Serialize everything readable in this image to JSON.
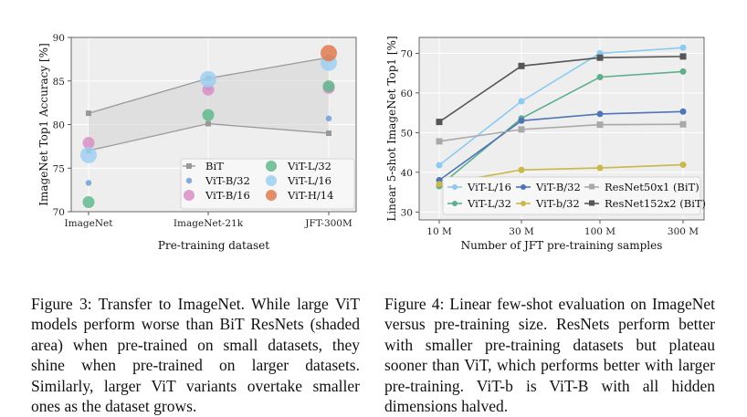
{
  "chart_data": [
    {
      "type": "scatter",
      "title": "",
      "xlabel": "Pre-training dataset",
      "ylabel": "ImageNet Top1 Accuracy [%]",
      "categories": [
        "ImageNet",
        "ImageNet-21k",
        "JFT-300M"
      ],
      "ylim": [
        70,
        90
      ],
      "yticks": [
        70,
        75,
        80,
        85,
        90
      ],
      "grid": true,
      "legend_position": "lower-right",
      "bit_band": {
        "name": "BiT",
        "upper": [
          81.3,
          85.3,
          87.7
        ],
        "lower": [
          77.0,
          80.1,
          79.0
        ],
        "color": "#999999"
      },
      "series": [
        {
          "name": "ViT-B/32",
          "values": [
            73.3,
            84.2,
            80.7
          ],
          "color": "#6f9fd8",
          "size": 1
        },
        {
          "name": "ViT-B/16",
          "values": [
            77.9,
            84.0,
            84.2
          ],
          "color": "#d98fc6",
          "size": 2
        },
        {
          "name": "ViT-L/32",
          "values": [
            71.1,
            81.1,
            84.4
          ],
          "color": "#62b88e",
          "size": 2
        },
        {
          "name": "ViT-L/16",
          "values": [
            76.5,
            85.2,
            87.1
          ],
          "color": "#9fcff2",
          "size": 3
        },
        {
          "name": "ViT-H/14",
          "values": [
            null,
            null,
            88.2
          ],
          "color": "#e07b4f",
          "size": 3
        }
      ],
      "legend": [
        "BiT",
        "ViT-B/32",
        "ViT-B/16",
        "ViT-L/32",
        "ViT-L/16",
        "ViT-H/14"
      ]
    },
    {
      "type": "line",
      "title": "",
      "xlabel": "Number of JFT pre-training samples",
      "ylabel": "Linear 5-shot ImageNet Top1 [%]",
      "x": [
        10,
        30,
        100,
        300
      ],
      "x_tick_labels": [
        "10 M",
        "30 M",
        "100 M",
        "300 M"
      ],
      "x_scale": "log",
      "ylim": [
        28,
        74
      ],
      "yticks": [
        30,
        40,
        50,
        60,
        70
      ],
      "grid": true,
      "legend_position": "lower-center",
      "series": [
        {
          "name": "ViT-L/16",
          "values": [
            41.8,
            57.9,
            70.0,
            71.4
          ],
          "color": "#8ccaf0",
          "marker": "circle"
        },
        {
          "name": "ViT-L/32",
          "values": [
            36.5,
            53.6,
            64.0,
            65.4
          ],
          "color": "#5fae8c",
          "marker": "circle"
        },
        {
          "name": "ViT-B/32",
          "values": [
            38.0,
            53.0,
            54.7,
            55.3
          ],
          "color": "#4f74b8",
          "marker": "circle"
        },
        {
          "name": "ViT-b/32",
          "values": [
            37.0,
            40.6,
            41.1,
            41.9
          ],
          "color": "#c9b84a",
          "marker": "circle"
        },
        {
          "name": "ResNet50x1 (BiT)",
          "values": [
            47.8,
            50.8,
            52.0,
            52.1
          ],
          "color": "#a9a9a9",
          "marker": "square"
        },
        {
          "name": "ResNet152x2 (BiT)",
          "values": [
            52.7,
            66.8,
            68.9,
            69.2
          ],
          "color": "#555555",
          "marker": "square"
        }
      ],
      "legend": [
        "ViT-L/16",
        "ViT-B/32",
        "ResNet50x1 (BiT)",
        "ViT-L/32",
        "ViT-b/32",
        "ResNet152x2 (BiT)"
      ]
    }
  ],
  "captions": {
    "fig3": "Figure 3: Transfer to ImageNet. While large ViT models perform worse than BiT ResNets (shaded area) when pre-trained on small datasets, they shine when pre-trained on larger datasets. Similarly, larger ViT variants overtake smaller ones as the dataset grows.",
    "fig4": "Figure 4: Linear few-shot evaluation on ImageNet versus pre-training size. ResNets perform better with smaller pre-training datasets but plateau sooner than ViT, which performs better with larger pre-training. ViT-b is ViT-B with all hidden dimensions halved."
  }
}
